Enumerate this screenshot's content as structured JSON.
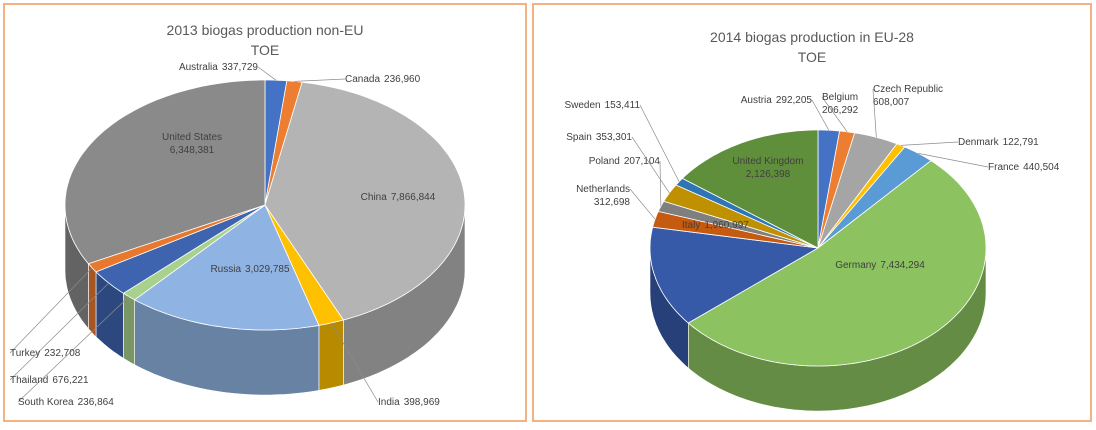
{
  "chart_data": [
    {
      "type": "pie",
      "title": "2013 biogas production non-EU",
      "subtitle": "TOE",
      "categories": [
        "Australia",
        "Canada",
        "China",
        "India",
        "Russia",
        "South Korea",
        "Thailand",
        "Turkey",
        "United States"
      ],
      "values": [
        337729,
        236960,
        7866844,
        398969,
        3029785,
        236864,
        676221,
        232708,
        6348381
      ],
      "value_labels": [
        "337,729",
        "236,960",
        "7,866,844",
        "398,969",
        "3,029,785",
        "236,864",
        "676,221",
        "232,708",
        "6,348,381"
      ],
      "colors": [
        "#4472c4",
        "#ed7d31",
        "#b4b4b4",
        "#ffc000",
        "#8fb4e3",
        "#a9d18e",
        "#3e64b0",
        "#e8782e",
        "#8a8a8a"
      ]
    },
    {
      "type": "pie",
      "title": "2014 biogas production in EU-28",
      "subtitle": "TOE",
      "categories": [
        "Austria",
        "Belgium",
        "Czech Republic",
        "Denmark",
        "France",
        "Germany",
        "Italy",
        "Netherlands",
        "Poland",
        "Spain",
        "Sweden",
        "United Kingdom"
      ],
      "values": [
        292205,
        206292,
        608007,
        122791,
        440504,
        7434294,
        1960997,
        312698,
        207104,
        353301,
        153411,
        2126398
      ],
      "value_labels": [
        "292,205",
        "206,292",
        "608,007",
        "122,791",
        "440,504",
        "7,434,294",
        "1,960,997",
        "312,698",
        "207,104",
        "353,301",
        "153,411",
        "2,126,398"
      ],
      "colors": [
        "#4472c4",
        "#ed7d31",
        "#a5a5a5",
        "#ffc000",
        "#5b9bd5",
        "#8cc260",
        "#3659a8",
        "#c55a11",
        "#7f7f7f",
        "#bf9000",
        "#2e75b6",
        "#5f8f3a"
      ]
    }
  ]
}
